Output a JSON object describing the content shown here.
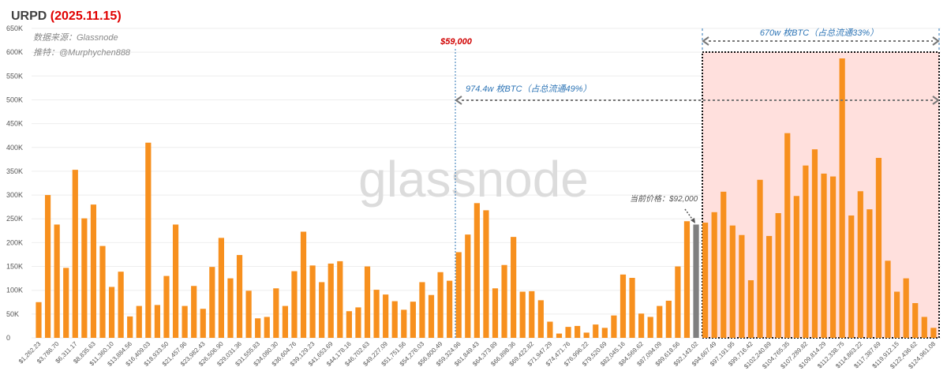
{
  "chart_data": {
    "type": "bar",
    "title": "URPD",
    "title_date": "(2025.11.15)",
    "subtitle": "数据来源：Glassnode",
    "author": "推特：@Murphychen888",
    "watermark": "glassnode",
    "annotations": {
      "price_line": "$59,000",
      "left_range": "974.4w 枚BTC（占总流通49%）",
      "right_range": "670w 枚BTC（占总流通33%）",
      "current_price": "当前价格：$92,000"
    },
    "color": "#f7901e",
    "highlight": {
      "category": "$92,143.02",
      "color": "#7f7f7f"
    },
    "range_fill": "#ffe0dd",
    "categories": [
      "$1,262.23",
      null,
      "$3,786.70",
      null,
      "$6,311.17",
      null,
      "$8,835.63",
      null,
      "$11,360.10",
      null,
      "$13,884.56",
      null,
      "$16,409.03",
      null,
      "$18,933.50",
      null,
      "$21,457.96",
      null,
      "$23,982.43",
      null,
      "$26,506.90",
      null,
      "$29,031.36",
      null,
      "$31,555.83",
      null,
      "$34,080.30",
      null,
      "$36,604.76",
      null,
      "$39,129.23",
      null,
      "$41,653.69",
      null,
      "$44,178.16",
      null,
      "$46,702.63",
      null,
      "$49,227.09",
      null,
      "$51,751.56",
      null,
      "$54,276.03",
      null,
      "$56,800.49",
      null,
      "$59,324.96",
      null,
      "$61,849.43",
      null,
      "$64,373.89",
      null,
      "$66,898.36",
      null,
      "$69,422.82",
      null,
      "$71,947.29",
      null,
      "$74,471.76",
      null,
      "$76,996.22",
      null,
      "$79,520.69",
      null,
      "$82,045.16",
      null,
      "$84,569.62",
      null,
      "$87,094.09",
      null,
      "$89,618.56",
      null,
      "$92,143.02",
      null,
      "$94,667.49",
      null,
      "$97,191.95",
      null,
      "$99,716.42",
      null,
      "$102,240.89",
      null,
      "$104,765.35",
      null,
      "$107,289.82",
      null,
      "$109,814.29",
      null,
      "$112,338.75",
      null,
      "$114,863.22",
      null,
      "$117,387.69",
      null,
      "$119,912.15",
      null,
      "$122,436.62",
      null,
      "$124,961.08"
    ],
    "values": [
      75000,
      300000,
      238000,
      147000,
      353000,
      251000,
      280000,
      193000,
      107000,
      139000,
      45000,
      67000,
      410000,
      69000,
      130000,
      238000,
      67000,
      109000,
      61000,
      149000,
      210000,
      125000,
      174000,
      99000,
      41000,
      44000,
      104000,
      67000,
      140000,
      223000,
      152000,
      117000,
      156000,
      161000,
      56000,
      64000,
      150000,
      101000,
      91000,
      77000,
      59000,
      76000,
      117000,
      90000,
      138000,
      120000,
      180000,
      217000,
      283000,
      268000,
      104000,
      153000,
      212000,
      97000,
      98000,
      79000,
      34000,
      9000,
      23000,
      25000,
      11000,
      28000,
      21000,
      47000,
      133000,
      126000,
      51000,
      44000,
      67000,
      78000,
      150000,
      245000,
      238000,
      242000,
      264000,
      307000,
      236000,
      216000,
      121000,
      332000,
      214000,
      262000,
      430000,
      298000,
      362000,
      396000,
      345000,
      339000,
      587000,
      257000,
      308000,
      270000,
      378000,
      162000,
      97000,
      125000,
      73000,
      44000,
      21000
    ],
    "ylim": [
      0,
      650000
    ],
    "yticks": [
      {
        "value": 0,
        "label": "0"
      },
      {
        "value": 50000,
        "label": "50K"
      },
      {
        "value": 100000,
        "label": "100K"
      },
      {
        "value": 150000,
        "label": "150K"
      },
      {
        "value": 200000,
        "label": "200K"
      },
      {
        "value": 250000,
        "label": "250K"
      },
      {
        "value": 300000,
        "label": "300K"
      },
      {
        "value": 350000,
        "label": "350K"
      },
      {
        "value": 400000,
        "label": "400K"
      },
      {
        "value": 450000,
        "label": "450K"
      },
      {
        "value": 500000,
        "label": "500K"
      },
      {
        "value": 550000,
        "label": "550K"
      },
      {
        "value": 600000,
        "label": "600K"
      },
      {
        "value": 650000,
        "label": "650K"
      }
    ],
    "grid": true
  }
}
